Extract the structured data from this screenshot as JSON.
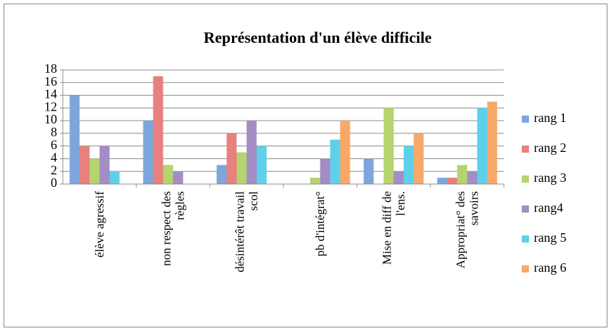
{
  "chart_data": {
    "type": "bar",
    "title": "Représentation d'un élève difficile",
    "categories": [
      "élève agressif",
      "non respect des règles",
      "désintérêt travail scol",
      "pb d'intégrat°",
      "Mise en diff de l'ens.",
      "Appropriat° des savoirs"
    ],
    "series": [
      {
        "name": "rang 1",
        "color": "#7ea6dc",
        "values": [
          14,
          10,
          3,
          0,
          4,
          1
        ]
      },
      {
        "name": "rang 2",
        "color": "#e8807e",
        "values": [
          6,
          17,
          8,
          0,
          0,
          1
        ]
      },
      {
        "name": "rang 3",
        "color": "#b5d36e",
        "values": [
          4,
          3,
          5,
          1,
          12,
          3
        ]
      },
      {
        "name": "rang4",
        "color": "#a48cc4",
        "values": [
          6,
          2,
          10,
          4,
          2,
          2
        ]
      },
      {
        "name": "rang 5",
        "color": "#5fd0ea",
        "values": [
          2,
          0,
          6,
          7,
          6,
          12
        ]
      },
      {
        "name": "rang 6",
        "color": "#f8a868",
        "values": [
          0,
          0,
          0,
          10,
          8,
          13
        ]
      }
    ],
    "ylim": [
      0,
      18
    ],
    "yticks": [
      0,
      2,
      4,
      6,
      8,
      10,
      12,
      14,
      16,
      18
    ],
    "grid": true,
    "legend": "right"
  }
}
